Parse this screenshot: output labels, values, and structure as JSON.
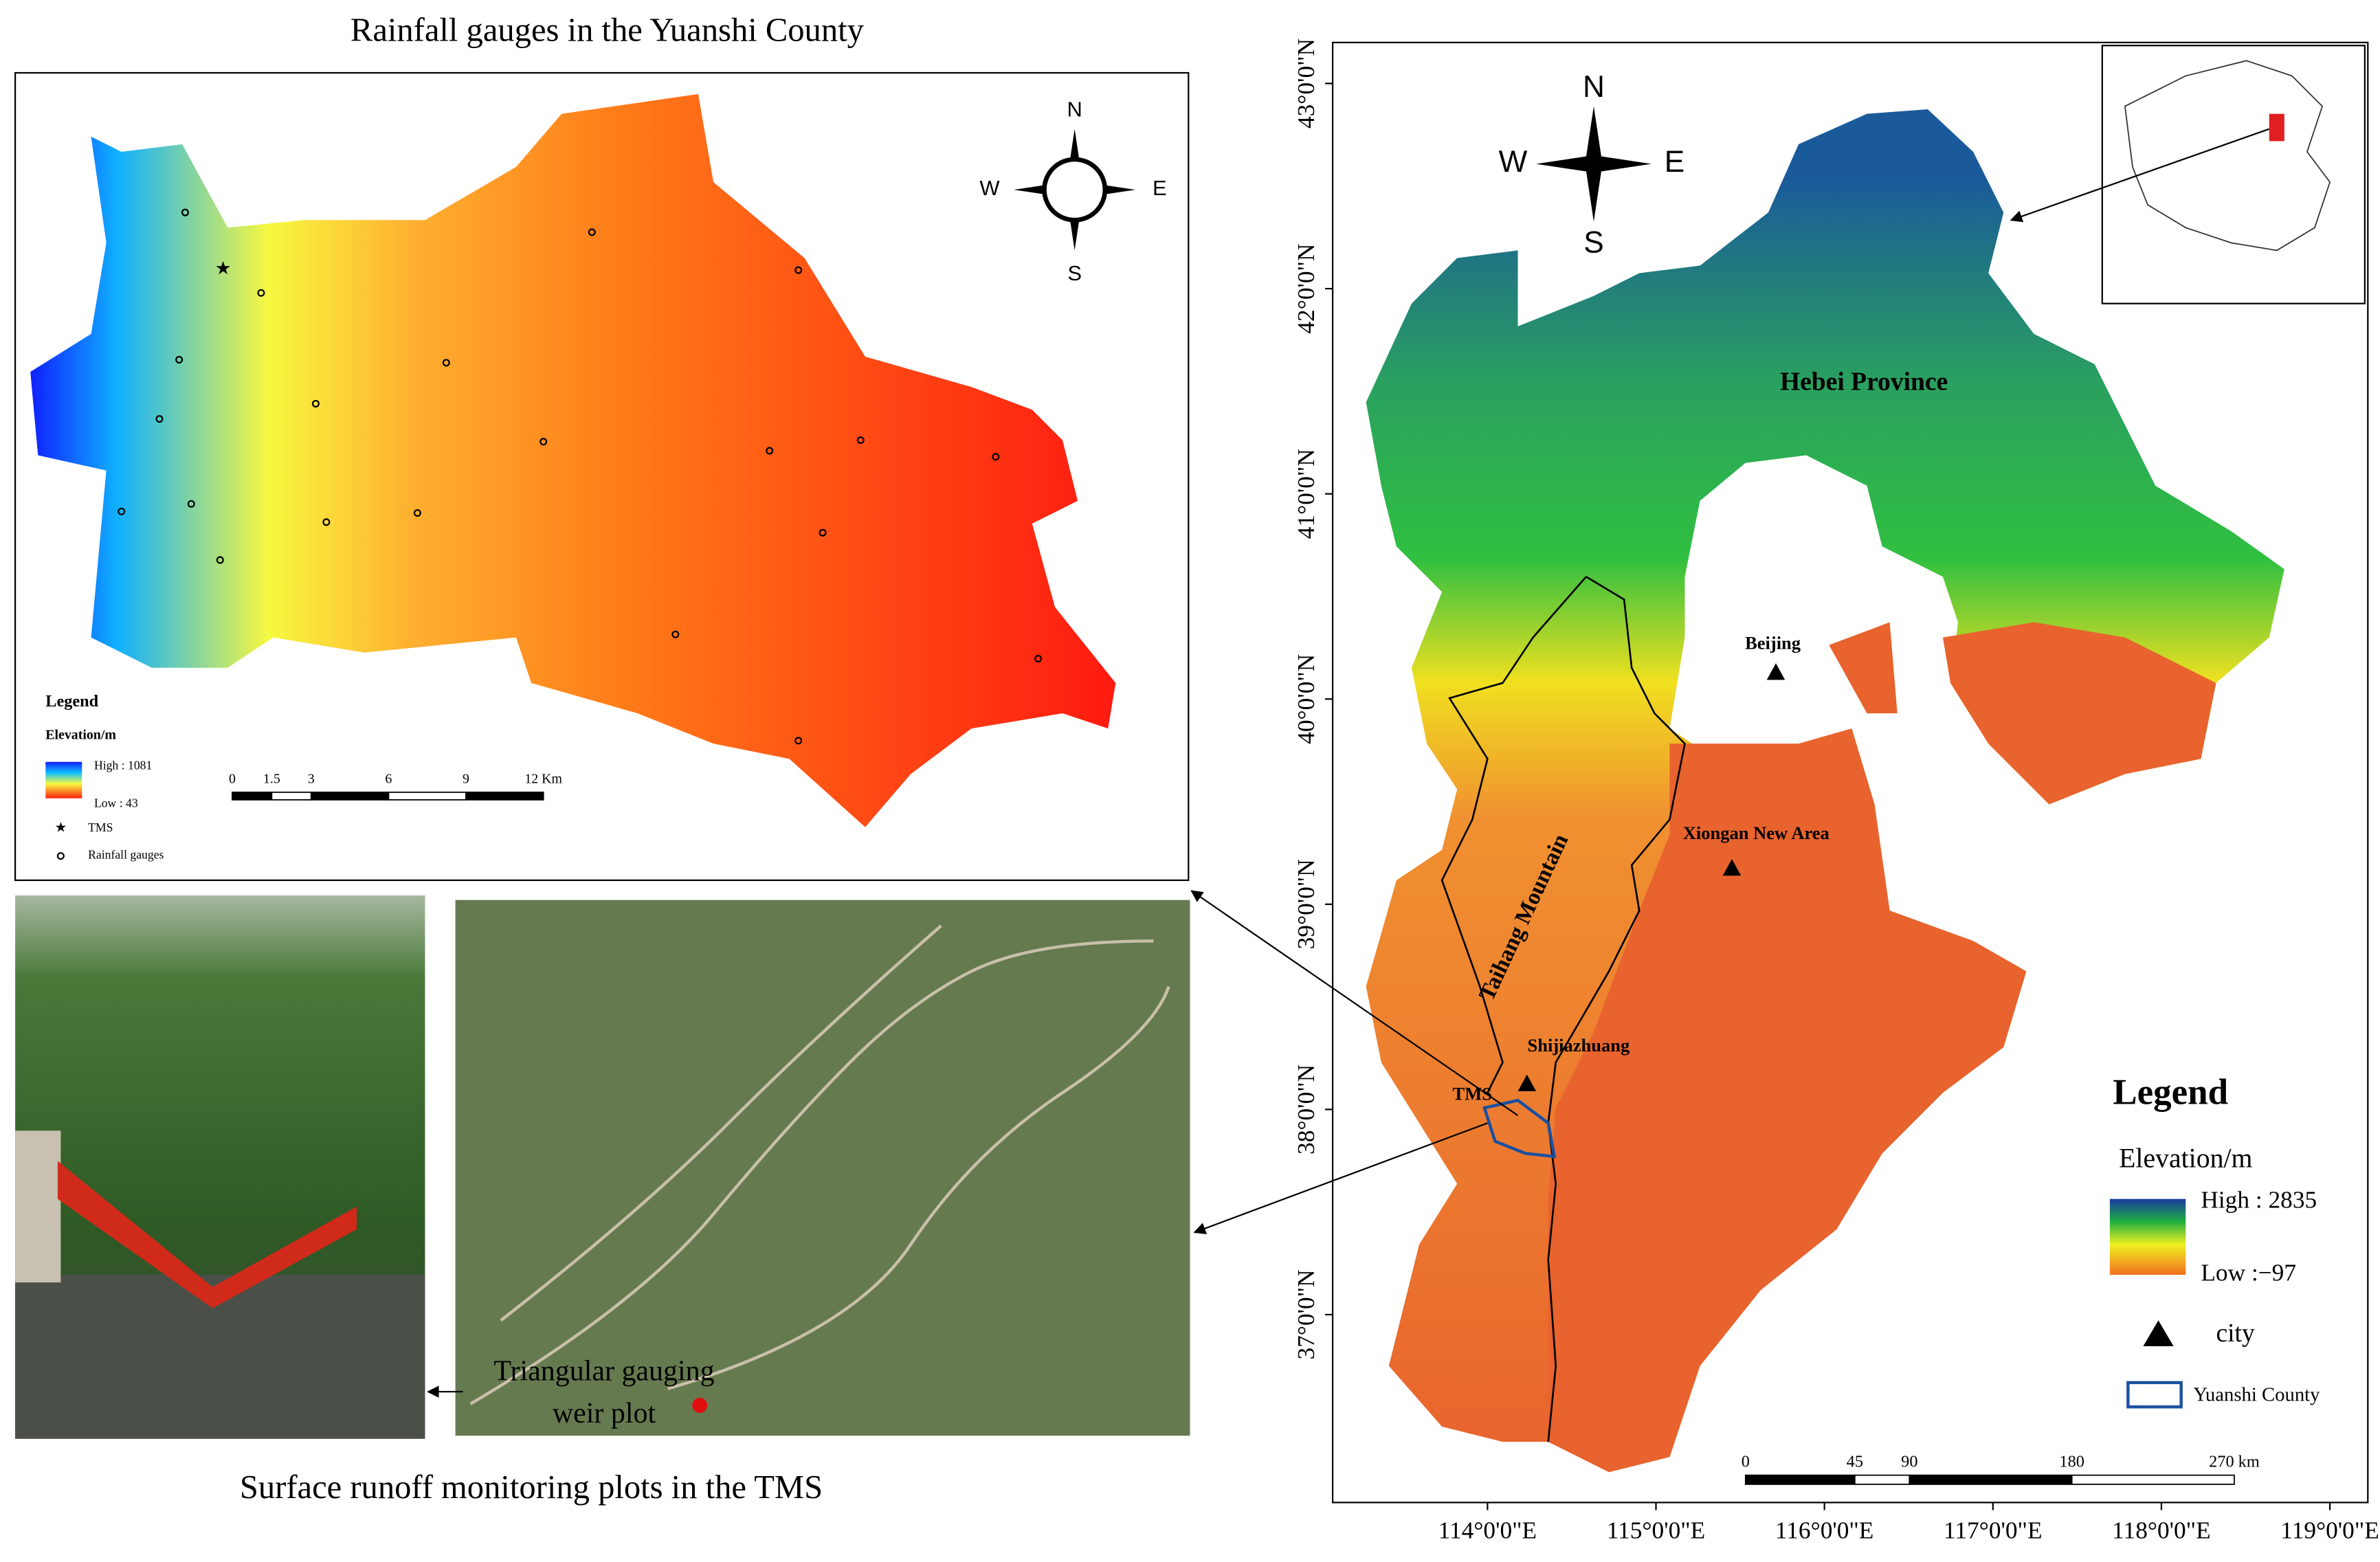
{
  "left_map": {
    "title": "Rainfall gauges in the Yuanshi County",
    "compass": [
      "N",
      "W",
      "E",
      "S"
    ],
    "legend": {
      "title": "Legend",
      "elevation_title": "Elevation/m",
      "high": "High : 1081",
      "low": "Low : 43",
      "tms": "TMS",
      "gauges": "Rainfall gauges"
    },
    "scale_bar": [
      "0",
      "1.5",
      "3",
      "6",
      "9",
      "12 Km"
    ]
  },
  "photos": {
    "annotation": [
      "Triangular gauging",
      "weir plot"
    ],
    "caption": "Surface runoff monitoring plots in the TMS"
  },
  "right_map": {
    "compass": [
      "N",
      "W",
      "E",
      "S"
    ],
    "latitude_labels": [
      "43°0'0\"N",
      "42°0'0\"N",
      "41°0'0\"N",
      "40°0'0\"N",
      "39°0'0\"N",
      "38°0'0\"N",
      "37°0'0\"N"
    ],
    "longitude_labels": [
      "114°0'0\"E",
      "115°0'0\"E",
      "116°0'0\"E",
      "117°0'0\"E",
      "118°0'0\"E",
      "119°0'0\"E"
    ],
    "places": {
      "province": "Hebei Province",
      "beijing": "Beijing",
      "xiongan": "Xiongan New Area",
      "mountain": "Taihang Mountain",
      "shijiazhuang": "Shijiazhuang",
      "tms": "TMS"
    },
    "legend": {
      "title": "Legend",
      "elevation_title": "Elevation/m",
      "high": "High : 2835",
      "low": "Low :−97",
      "city": "city",
      "county": "Yuanshi County"
    },
    "scale_bar": [
      "0",
      "45",
      "90",
      "180",
      "270 km"
    ]
  }
}
